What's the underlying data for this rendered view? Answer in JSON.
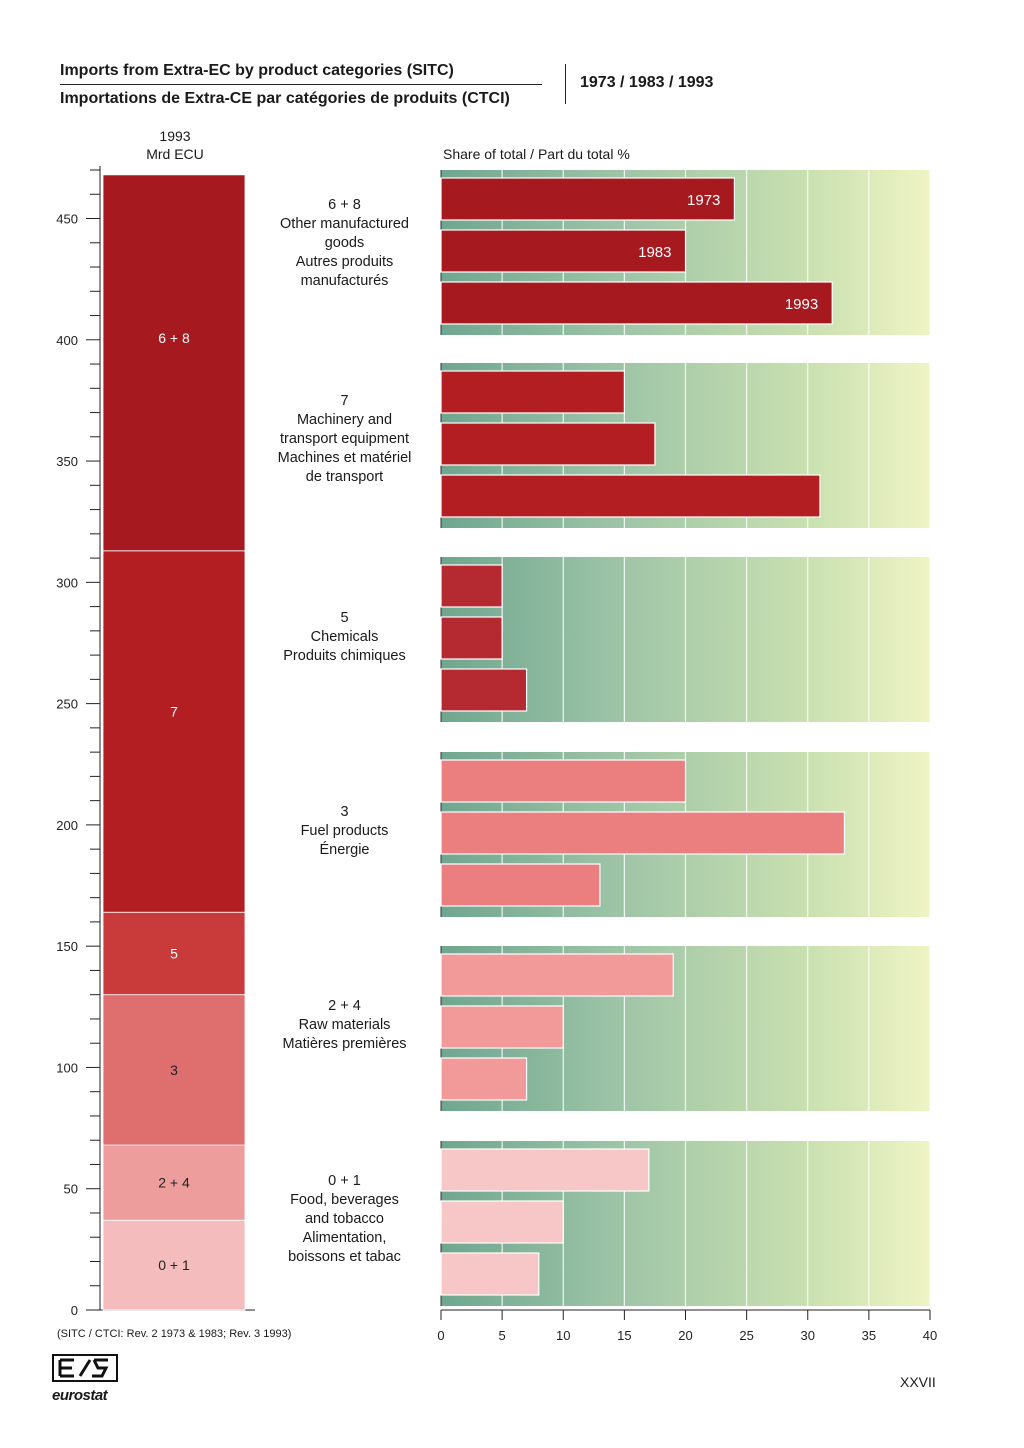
{
  "header": {
    "title_en": "Imports from Extra-EC by product categories (SITC)",
    "title_fr": "Importations de Extra-CE par catégories de produits (CTCI)",
    "years": "1973 / 1983 / 1993"
  },
  "left_header": {
    "year": "1993",
    "unit": "Mrd ECU"
  },
  "right_header": "Share of total / Part du total  %",
  "footnote": "(SITC / CTCI: Rev. 2 1973 & 1983; Rev. 3 1993)",
  "page_number": "XXVII",
  "logo": {
    "text": "eurostat"
  },
  "categories": [
    {
      "code": "6 + 8",
      "lines": [
        "6 + 8",
        "Other manufactured",
        "goods",
        "Autres produits",
        "manufacturés"
      ]
    },
    {
      "code": "7",
      "lines": [
        "7",
        "Machinery and",
        "transport equipment",
        "Machines et matériel",
        "de transport"
      ]
    },
    {
      "code": "5",
      "lines": [
        "5",
        "Chemicals",
        "Produits chimiques"
      ]
    },
    {
      "code": "3",
      "lines": [
        "3",
        "Fuel products",
        "Énergie"
      ]
    },
    {
      "code": "2 + 4",
      "lines": [
        "2 + 4",
        "Raw materials",
        "Matières premières"
      ]
    },
    {
      "code": "0 + 1",
      "lines": [
        "0 + 1",
        "Food, beverages",
        "and tobacco",
        "Alimentation,",
        "boissons et tabac"
      ]
    }
  ],
  "chart_data": [
    {
      "type": "bar",
      "orientation": "stacked-vertical",
      "title": "1993",
      "ylabel": "Mrd ECU",
      "ylim": [
        0,
        470
      ],
      "yticks": [
        0,
        50,
        100,
        150,
        200,
        250,
        300,
        350,
        400,
        450
      ],
      "segments": [
        {
          "name": "0 + 1",
          "value": 37,
          "color": "#f4bcbc"
        },
        {
          "name": "2 + 4",
          "value": 31,
          "color": "#ee9d9d"
        },
        {
          "name": "3",
          "value": 62,
          "color": "#df6e6e"
        },
        {
          "name": "5",
          "value": 34,
          "color": "#c93b3b"
        },
        {
          "name": "7",
          "value": 149,
          "color": "#b31e22"
        },
        {
          "name": "6 + 8",
          "value": 155,
          "color": "#a6191f"
        }
      ]
    },
    {
      "type": "bar",
      "orientation": "horizontal",
      "title": "Share of total / Part du total  %",
      "xlim": [
        0,
        40
      ],
      "xticks": [
        0,
        5,
        10,
        15,
        20,
        25,
        30,
        35,
        40
      ],
      "bar_labels": [
        "1973",
        "1983",
        "1993"
      ],
      "series": [
        {
          "name": "1973",
          "values": [
            24,
            15,
            5,
            20,
            19,
            17
          ]
        },
        {
          "name": "1983",
          "values": [
            20,
            17.5,
            5,
            33,
            10,
            10
          ]
        },
        {
          "name": "1993",
          "values": [
            32,
            31,
            7,
            13,
            7,
            8
          ]
        }
      ],
      "categories": [
        "6 + 8",
        "7",
        "5",
        "3",
        "2 + 4",
        "0 + 1"
      ],
      "bar_colors": [
        "#a6191f",
        "#b31e22",
        "#b52a30",
        "#eb7f7f",
        "#f29a9a",
        "#f7c6c6"
      ]
    }
  ]
}
